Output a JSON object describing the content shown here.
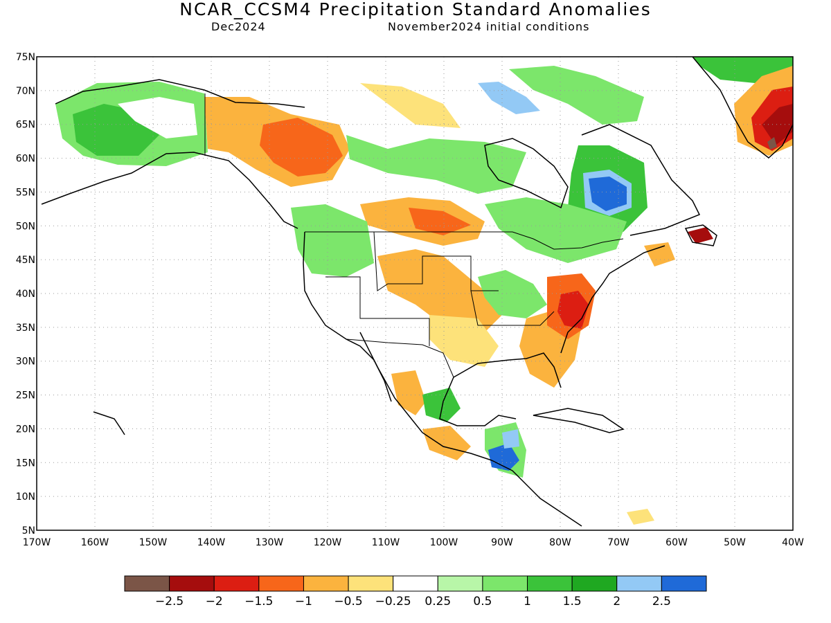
{
  "header": {
    "title": "NCAR_CCSM4 Precipitation Standard Anomalies",
    "valid_month": "Dec2024",
    "init_conditions": "November2024 initial conditions"
  },
  "axes": {
    "lat_labels": [
      "75N",
      "70N",
      "65N",
      "60N",
      "55N",
      "50N",
      "45N",
      "40N",
      "35N",
      "30N",
      "25N",
      "20N",
      "15N",
      "10N",
      "5N"
    ],
    "lon_labels": [
      "170W",
      "160W",
      "150W",
      "140W",
      "130W",
      "120W",
      "110W",
      "100W",
      "90W",
      "80W",
      "70W",
      "60W",
      "50W",
      "40W"
    ],
    "lat_range": [
      5,
      75
    ],
    "lon_range": [
      -170,
      -40
    ],
    "grid": "dotted"
  },
  "colorbar": {
    "colors": [
      "#7b5547",
      "#a50d0d",
      "#dc1e12",
      "#f7661a",
      "#fbb33e",
      "#fde27a",
      "#ffffff",
      "#b8f6a8",
      "#7ce66b",
      "#3bc33a",
      "#1fa821",
      "#93c9f5",
      "#1f6ad8"
    ],
    "labels": [
      "−2.5",
      "−2",
      "−1.5",
      "−1",
      "−0.5",
      "−0.25",
      "0.25",
      "0.5",
      "1",
      "1.5",
      "2",
      "2.5"
    ]
  },
  "anomaly_regions": [
    {
      "region": "Alaska",
      "category": "1"
    },
    {
      "region": "Western Canada",
      "category": "-1"
    },
    {
      "region": "Northern Plains",
      "category": "-1"
    },
    {
      "region": "Southern Plains",
      "category": "-0.5"
    },
    {
      "region": "Mid-Atlantic / Carolinas",
      "category": "-1.5"
    },
    {
      "region": "Hudson Bay / Quebec",
      "category": "2.5"
    },
    {
      "region": "Newfoundland",
      "category": "-2"
    },
    {
      "region": "Southern Greenland",
      "category": "-2.5"
    },
    {
      "region": "Central America",
      "category": "2.5"
    },
    {
      "region": "Pacific Northwest",
      "category": "1"
    }
  ]
}
